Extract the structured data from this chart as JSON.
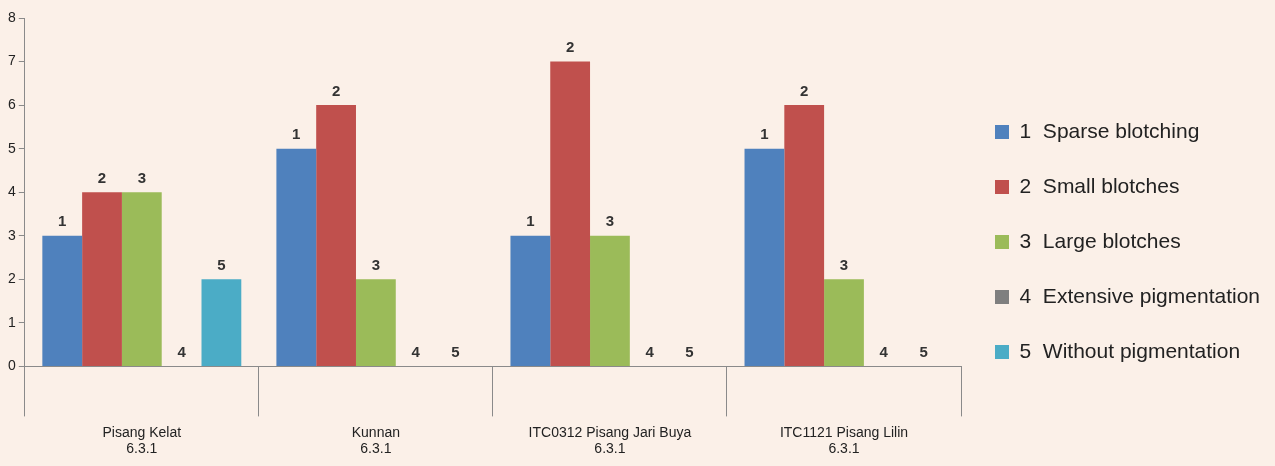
{
  "chart_data": {
    "type": "bar",
    "categories": [
      "Pisang Kelat\n6.3.1",
      "Kunnan\n6.3.1",
      "ITC0312 Pisang Jari Buya\n6.3.1",
      "ITC1121 Pisang Lilin\n6.3.1"
    ],
    "series": [
      {
        "name": "1  Sparse blotching",
        "color": "#4f81bd",
        "values": [
          3,
          5,
          3,
          5
        ]
      },
      {
        "name": "2  Small blotches",
        "color": "#c0504d",
        "values": [
          4,
          6,
          7,
          6
        ]
      },
      {
        "name": "3  Large blotches",
        "color": "#9bbb59",
        "values": [
          4,
          2,
          3,
          2
        ]
      },
      {
        "name": "4  Extensive pigmentation",
        "color": "#7f7f7f",
        "values": [
          0,
          0,
          0,
          0
        ]
      },
      {
        "name": "5  Without pigmentation",
        "color": "#4bacc6",
        "values": [
          2,
          0,
          0,
          0
        ]
      }
    ],
    "annotations": [
      "1",
      "1",
      "1",
      "1",
      "2",
      "2",
      "2",
      "2",
      "3",
      "3",
      "3",
      "3",
      "4",
      "4",
      "4",
      "4",
      "5",
      "5",
      "5",
      "5"
    ],
    "ylim": [
      0,
      8
    ],
    "yticks": [
      0,
      1,
      2,
      3,
      4,
      5,
      6,
      7,
      8
    ],
    "grid": false,
    "legend": "right"
  }
}
